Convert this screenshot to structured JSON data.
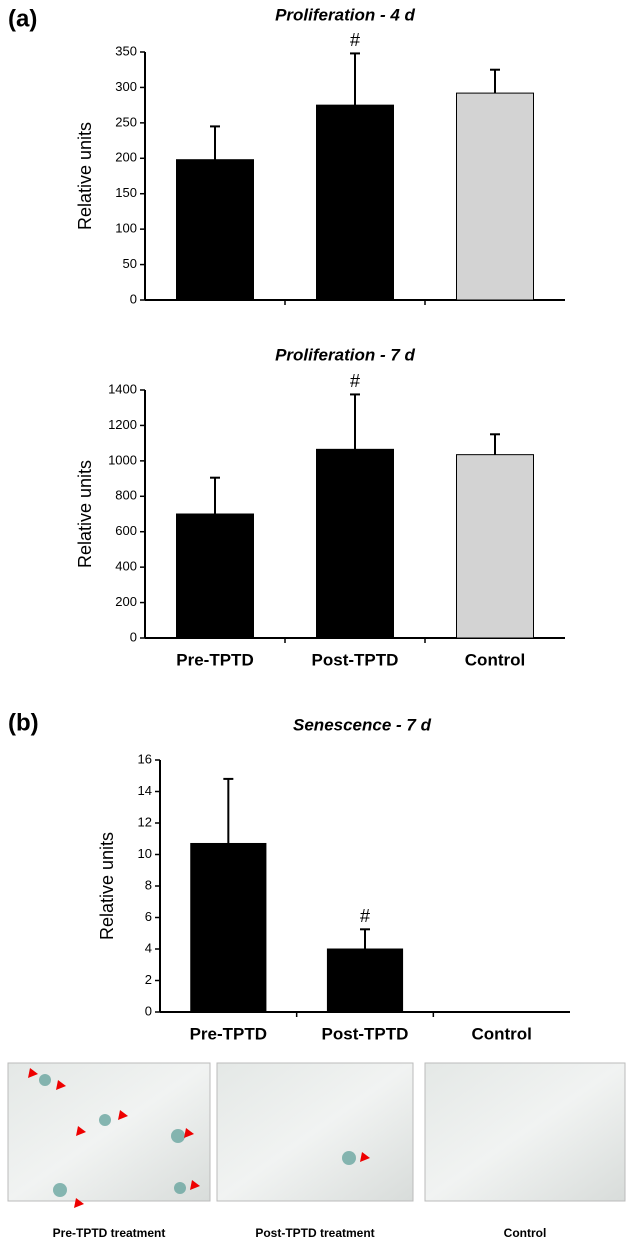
{
  "panel_labels": [
    "(a)",
    "(b)"
  ],
  "chart_data": [
    {
      "type": "bar",
      "title": "Proliferation - 4 d",
      "ylabel": "Relative units",
      "categories": [
        null,
        null,
        null
      ],
      "values": [
        198,
        275,
        292
      ],
      "errors": [
        47,
        73,
        33
      ],
      "colors": [
        "#000000",
        "#000000",
        "#d3d3d3"
      ],
      "annotations": [
        null,
        "#",
        null
      ],
      "ylim": [
        0,
        350
      ],
      "yticks": [
        0,
        50,
        100,
        150,
        200,
        250,
        300,
        350
      ]
    },
    {
      "type": "bar",
      "title": "Proliferation - 7 d",
      "ylabel": "Relative units",
      "categories": [
        "Pre-TPTD",
        "Post-TPTD",
        "Control"
      ],
      "values": [
        700,
        1065,
        1035
      ],
      "errors": [
        205,
        310,
        115
      ],
      "colors": [
        "#000000",
        "#000000",
        "#d3d3d3"
      ],
      "annotations": [
        null,
        "#",
        null
      ],
      "ylim": [
        0,
        1400
      ],
      "yticks": [
        0,
        200,
        400,
        600,
        800,
        1000,
        1200,
        1400
      ]
    },
    {
      "type": "bar",
      "title": "Senescence - 7 d",
      "ylabel": "Relative units",
      "categories": [
        "Pre-TPTD",
        "Post-TPTD",
        "Control"
      ],
      "values": [
        10.7,
        4.0,
        0
      ],
      "errors": [
        4.1,
        1.25,
        null
      ],
      "colors": [
        "#000000",
        "#000000",
        "#000000"
      ],
      "annotations": [
        null,
        "#",
        null
      ],
      "ylim": [
        0,
        16
      ],
      "yticks": [
        0,
        2,
        4,
        6,
        8,
        10,
        12,
        14,
        16
      ]
    }
  ],
  "image_captions": [
    "Pre-TPTD treatment",
    "Post-TPTD treatment",
    "Control"
  ]
}
